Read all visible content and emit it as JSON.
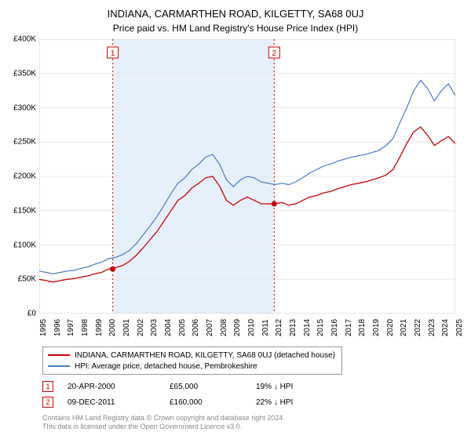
{
  "title_main": "INDIANA, CARMARTHEN ROAD, KILGETTY, SA68 0UJ",
  "title_sub": "Price paid vs. HM Land Registry's House Price Index (HPI)",
  "chart": {
    "type": "line",
    "background_color": "#ffffff",
    "grid_color": "#e8e8e8",
    "highlight_band_color": "#e6f0fa",
    "highlight_band_x": [
      2000.3,
      2011.94
    ],
    "dotted_line_color": "#cc0000",
    "xlim": [
      1995,
      2025
    ],
    "ylim": [
      0,
      400000
    ],
    "y_ticks": [
      0,
      50000,
      100000,
      150000,
      200000,
      250000,
      300000,
      350000,
      400000
    ],
    "y_tick_labels": [
      "£0",
      "£50K",
      "£100K",
      "£150K",
      "£200K",
      "£250K",
      "£300K",
      "£350K",
      "£400K"
    ],
    "x_ticks": [
      1995,
      1996,
      1997,
      1998,
      1999,
      2000,
      2001,
      2002,
      2003,
      2004,
      2005,
      2006,
      2007,
      2008,
      2009,
      2010,
      2011,
      2012,
      2013,
      2014,
      2015,
      2016,
      2017,
      2018,
      2019,
      2020,
      2021,
      2022,
      2023,
      2024,
      2025
    ],
    "label_fontsize": 10,
    "marker_boxes": [
      {
        "label": "1",
        "x": 2000.3
      },
      {
        "label": "2",
        "x": 2011.94
      }
    ],
    "sale_points": [
      {
        "x": 2000.3,
        "y": 65000
      },
      {
        "x": 2011.94,
        "y": 160000
      }
    ],
    "series": [
      {
        "name": "hpi",
        "color": "#4a7bc8",
        "line_width": 1.2,
        "data": [
          [
            1995,
            62000
          ],
          [
            1995.5,
            60000
          ],
          [
            1996,
            58000
          ],
          [
            1996.5,
            60000
          ],
          [
            1997,
            62000
          ],
          [
            1997.5,
            63000
          ],
          [
            1998,
            66000
          ],
          [
            1998.5,
            68000
          ],
          [
            1999,
            72000
          ],
          [
            1999.5,
            75000
          ],
          [
            2000,
            80000
          ],
          [
            2000.5,
            82000
          ],
          [
            2001,
            86000
          ],
          [
            2001.5,
            92000
          ],
          [
            2002,
            102000
          ],
          [
            2002.5,
            115000
          ],
          [
            2003,
            128000
          ],
          [
            2003.5,
            142000
          ],
          [
            2004,
            158000
          ],
          [
            2004.5,
            175000
          ],
          [
            2005,
            190000
          ],
          [
            2005.5,
            198000
          ],
          [
            2006,
            210000
          ],
          [
            2006.5,
            218000
          ],
          [
            2007,
            228000
          ],
          [
            2007.5,
            232000
          ],
          [
            2008,
            218000
          ],
          [
            2008.5,
            195000
          ],
          [
            2009,
            185000
          ],
          [
            2009.5,
            195000
          ],
          [
            2010,
            200000
          ],
          [
            2010.5,
            198000
          ],
          [
            2011,
            192000
          ],
          [
            2011.5,
            190000
          ],
          [
            2012,
            188000
          ],
          [
            2012.5,
            190000
          ],
          [
            2013,
            188000
          ],
          [
            2013.5,
            192000
          ],
          [
            2014,
            198000
          ],
          [
            2014.5,
            205000
          ],
          [
            2015,
            210000
          ],
          [
            2015.5,
            215000
          ],
          [
            2016,
            218000
          ],
          [
            2016.5,
            222000
          ],
          [
            2017,
            225000
          ],
          [
            2017.5,
            228000
          ],
          [
            2018,
            230000
          ],
          [
            2018.5,
            232000
          ],
          [
            2019,
            235000
          ],
          [
            2019.5,
            238000
          ],
          [
            2020,
            245000
          ],
          [
            2020.5,
            255000
          ],
          [
            2021,
            278000
          ],
          [
            2021.5,
            300000
          ],
          [
            2022,
            325000
          ],
          [
            2022.5,
            340000
          ],
          [
            2023,
            328000
          ],
          [
            2023.5,
            310000
          ],
          [
            2024,
            325000
          ],
          [
            2024.5,
            335000
          ],
          [
            2025,
            318000
          ]
        ]
      },
      {
        "name": "price-paid",
        "color": "#cc0000",
        "line_width": 1.3,
        "data": [
          [
            1995,
            50000
          ],
          [
            1995.5,
            48000
          ],
          [
            1996,
            46000
          ],
          [
            1996.5,
            48000
          ],
          [
            1997,
            50000
          ],
          [
            1997.5,
            51000
          ],
          [
            1998,
            53000
          ],
          [
            1998.5,
            55000
          ],
          [
            1999,
            58000
          ],
          [
            1999.5,
            60000
          ],
          [
            2000,
            65000
          ],
          [
            2000.5,
            67000
          ],
          [
            2001,
            70000
          ],
          [
            2001.5,
            76000
          ],
          [
            2002,
            85000
          ],
          [
            2002.5,
            96000
          ],
          [
            2003,
            108000
          ],
          [
            2003.5,
            120000
          ],
          [
            2004,
            135000
          ],
          [
            2004.5,
            150000
          ],
          [
            2005,
            165000
          ],
          [
            2005.5,
            172000
          ],
          [
            2006,
            183000
          ],
          [
            2006.5,
            190000
          ],
          [
            2007,
            198000
          ],
          [
            2007.5,
            200000
          ],
          [
            2008,
            186000
          ],
          [
            2008.5,
            165000
          ],
          [
            2009,
            158000
          ],
          [
            2009.5,
            165000
          ],
          [
            2010,
            170000
          ],
          [
            2010.5,
            165000
          ],
          [
            2011,
            160000
          ],
          [
            2011.5,
            160000
          ],
          [
            2012,
            160000
          ],
          [
            2012.5,
            162000
          ],
          [
            2013,
            158000
          ],
          [
            2013.5,
            160000
          ],
          [
            2014,
            165000
          ],
          [
            2014.5,
            170000
          ],
          [
            2015,
            172000
          ],
          [
            2015.5,
            176000
          ],
          [
            2016,
            178000
          ],
          [
            2016.5,
            182000
          ],
          [
            2017,
            185000
          ],
          [
            2017.5,
            188000
          ],
          [
            2018,
            190000
          ],
          [
            2018.5,
            192000
          ],
          [
            2019,
            195000
          ],
          [
            2019.5,
            198000
          ],
          [
            2020,
            202000
          ],
          [
            2020.5,
            210000
          ],
          [
            2021,
            228000
          ],
          [
            2021.5,
            248000
          ],
          [
            2022,
            265000
          ],
          [
            2022.5,
            272000
          ],
          [
            2023,
            260000
          ],
          [
            2023.5,
            245000
          ],
          [
            2024,
            252000
          ],
          [
            2024.5,
            258000
          ],
          [
            2025,
            248000
          ]
        ]
      }
    ]
  },
  "legend": {
    "items": [
      {
        "color": "#cc0000",
        "label": "INDIANA, CARMARTHEN ROAD, KILGETTY, SA68 0UJ (detached house)"
      },
      {
        "color": "#4a7bc8",
        "label": "HPI: Average price, detached house, Pembrokeshire"
      }
    ]
  },
  "sales": [
    {
      "marker": "1",
      "date": "20-APR-2000",
      "price": "£65,000",
      "change": "19% ↓ HPI"
    },
    {
      "marker": "2",
      "date": "09-DEC-2011",
      "price": "£160,000",
      "change": "22% ↓ HPI"
    }
  ],
  "footer_line1": "Contains HM Land Registry data © Crown copyright and database right 2024.",
  "footer_line2": "This data is licensed under the Open Government Licence v3.0."
}
